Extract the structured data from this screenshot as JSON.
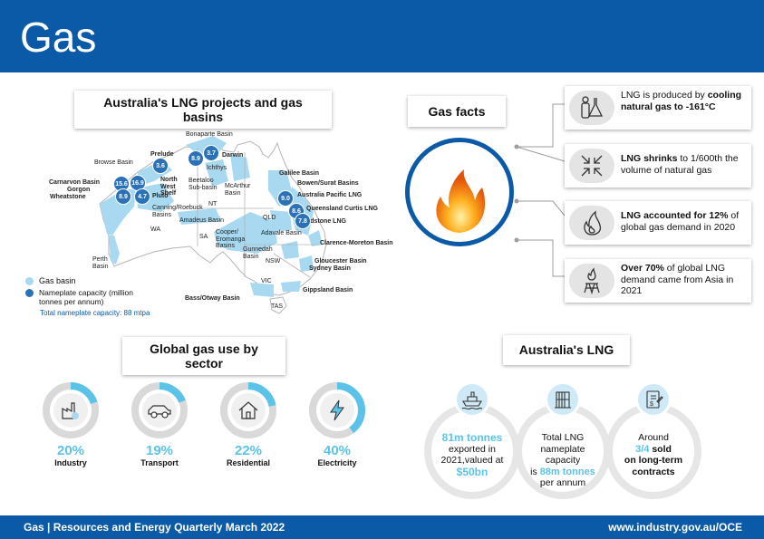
{
  "header": {
    "title": "Gas"
  },
  "map_section": {
    "title": "Australia's LNG projects and gas basins",
    "labels": {
      "bonaparte": "Bonaparte Basin",
      "darwin": "Darwin",
      "ichthys": "Ichthys",
      "prelude": "Prelude",
      "browse": "Browse Basin",
      "carnarvon": "Carnarvon Basin",
      "gorgon": "Gorgon",
      "wheatstone": "Wheatstone",
      "north_west_shelf": "North West Shelf",
      "pluto": "Pluto",
      "beetaloo": "Beetaloo Sub-basin",
      "mcarthur": "McArthur Basin",
      "canning": "Canning/Roebuck Basins",
      "amadeus": "Amadeus Basin",
      "galilee": "Galilee Basin",
      "bowen": "Bowen/Surat Basins",
      "aplng": "Australia Pacific LNG",
      "qclng": "Queensland Curtis LNG",
      "glng": "Gladstone LNG",
      "adavale": "Adavale Basin",
      "clarence": "Clarence-Moreton Basin",
      "cooper": "Cooper/ Eromanga Basins",
      "gunnedah": "Gunnedah Basin",
      "gloucester": "Gloucester Basin",
      "sydney": "Sydney Basin",
      "gippsland": "Gippsland Basin",
      "bass": "Bass/Otway Basin",
      "perth": "Perth Basin",
      "wa": "WA",
      "nt": "NT",
      "sa": "SA",
      "qld": "QLD",
      "nsw": "NSW",
      "vic": "VIC",
      "tas": "TAS"
    },
    "capacities": {
      "prelude": "3.6",
      "ichthys": "8.9",
      "darwin": "3.7",
      "gorgon": "15.6",
      "north_west_shelf": "16.9",
      "wheatstone": "8.9",
      "pluto": "4.7",
      "aplng": "9.0",
      "qclng": "8.6",
      "glng": "7.8"
    },
    "legend": {
      "basin": "Gas basin",
      "capacity": "Nameplate capacity (million tonnes per annum)",
      "total": "Total nameplate capacity: 88 mtpa"
    }
  },
  "gas_facts": {
    "title": "Gas facts",
    "facts": [
      {
        "pre": "LNG is produced by ",
        "bold": "cooling natural gas to -161°C",
        "post": "",
        "icon": "lab-cooling-icon"
      },
      {
        "pre": "",
        "bold": "LNG shrinks",
        "post": " to 1/600th the volume of natural gas",
        "icon": "shrink-arrows-icon"
      },
      {
        "pre": "",
        "bold": "LNG accounted for 12%",
        "post": " of global gas demand in 2020",
        "icon": "flame-icon"
      },
      {
        "pre": "",
        "bold": "Over 70%",
        "post": " of global LNG demand came from Asia in 2021",
        "icon": "gas-rig-icon"
      }
    ]
  },
  "sector": {
    "title": "Global gas use by sector",
    "items": [
      {
        "pct": "20%",
        "label": "Industry",
        "value": 20,
        "icon": "factory-icon"
      },
      {
        "pct": "19%",
        "label": "Transport",
        "value": 19,
        "icon": "car-icon"
      },
      {
        "pct": "22%",
        "label": "Residential",
        "value": 22,
        "icon": "house-icon"
      },
      {
        "pct": "40%",
        "label": "Electricity",
        "value": 40,
        "icon": "lightning-icon"
      }
    ],
    "colors": {
      "fill": "#5bc3e8",
      "track": "#d9d9d9"
    }
  },
  "aus_lng": {
    "title": "Australia's LNG",
    "c1": {
      "a": "81m tonnes",
      "b": "exported in 2021,valued at",
      "c": "$50bn",
      "icon": "ship-icon"
    },
    "c2": {
      "a": "Total LNG nameplate capacity",
      "b": "is",
      "c": "88m tonnes",
      "d": "per annum",
      "icon": "building-icon"
    },
    "c3": {
      "a": "Around",
      "b": "3/4",
      "c": "sold",
      "d": "on long-term contracts",
      "icon": "contract-icon"
    }
  },
  "footer": {
    "left": "Gas | Resources and Energy Quarterly March 2022",
    "right": "www.industry.gov.au/OCE"
  },
  "colors": {
    "brand": "#0b5aa7",
    "accent": "#5bc3e8",
    "basin": "#a8d9f0",
    "bubble": "#2a71b8"
  }
}
